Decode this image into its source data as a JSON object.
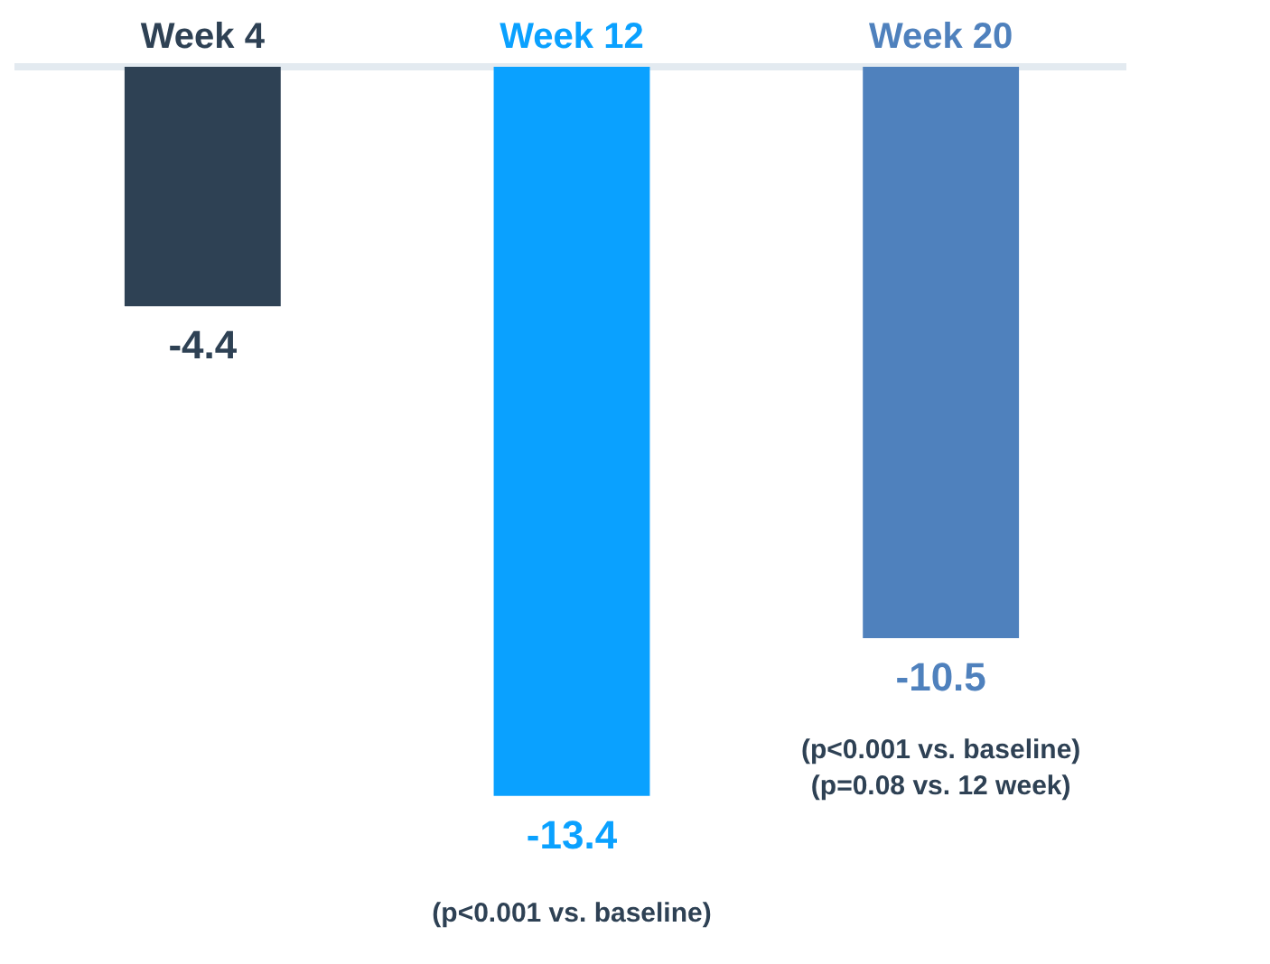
{
  "chart_data": {
    "type": "bar",
    "categories": [
      "Week 4",
      "Week 12",
      "Week 20"
    ],
    "values": [
      -4.4,
      -13.4,
      -10.5
    ],
    "colors": [
      "#2e4154",
      "#0aa1ff",
      "#4f81bd"
    ],
    "data_labels": true,
    "grid": false,
    "legend": false,
    "tick_labels": "x",
    "annotations": [
      "(p<0.001 vs. baseline)",
      "(p<0.001 vs. baseline)",
      "(p=0.08 vs. 12 week)"
    ]
  }
}
